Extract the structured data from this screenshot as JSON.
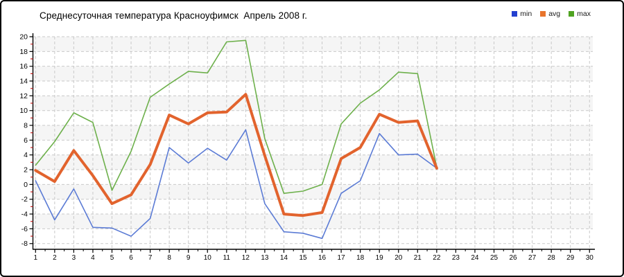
{
  "chart_data": {
    "type": "line",
    "title": "Среднесуточная температура Красноуфимск  Апрель 2008 г.",
    "x": [
      1,
      2,
      3,
      4,
      5,
      6,
      7,
      8,
      9,
      10,
      11,
      12,
      13,
      14,
      15,
      16,
      17,
      18,
      19,
      20,
      21,
      22
    ],
    "series": [
      {
        "name": "min",
        "line_color": "#5b7bd5",
        "legend_color": "#2340cf",
        "line_width": 1.6,
        "values": [
          0.5,
          -4.8,
          -0.6,
          -5.8,
          -5.9,
          -7,
          -4.6,
          5,
          2.9,
          4.9,
          3.3,
          7.4,
          -2.6,
          -6.4,
          -6.6,
          -7.3,
          -1.2,
          0.5,
          6.9,
          4,
          4.1,
          2.2
        ]
      },
      {
        "name": "avg",
        "line_color": "#e2632d",
        "legend_color": "#e8742c",
        "line_width": 4,
        "values": [
          1.9,
          0.4,
          4.6,
          1.2,
          -2.6,
          -1.4,
          2.7,
          9.4,
          8.2,
          9.7,
          9.8,
          12.2,
          3.9,
          -4,
          -4.2,
          -3.8,
          3.5,
          5,
          9.5,
          8.4,
          8.6,
          2.2
        ]
      },
      {
        "name": "max",
        "line_color": "#6db04b",
        "legend_color": "#4fa321",
        "line_width": 1.6,
        "values": [
          2.6,
          5.8,
          9.7,
          8.4,
          -0.8,
          4.5,
          11.8,
          13.6,
          15.3,
          15.1,
          19.3,
          19.5,
          6.2,
          -1.2,
          -0.9,
          0,
          8.2,
          11,
          12.8,
          15.2,
          15,
          2.3
        ]
      }
    ],
    "x_axis": {
      "min": 1,
      "max": 30,
      "tick_step": 1,
      "ticks": [
        1,
        2,
        3,
        4,
        5,
        6,
        7,
        8,
        9,
        10,
        11,
        12,
        13,
        14,
        15,
        16,
        17,
        18,
        19,
        20,
        21,
        22,
        23,
        24,
        25,
        26,
        27,
        28,
        29,
        30
      ]
    },
    "y_axis": {
      "min": -8,
      "max": 20,
      "tick_step": 2,
      "ticks": [
        20,
        18,
        16,
        14,
        12,
        10,
        8,
        6,
        4,
        2,
        0,
        -2,
        -4,
        -6,
        -8
      ],
      "minor_ticks": [
        19,
        17,
        15,
        13,
        11,
        9,
        7,
        5,
        3,
        1,
        -1,
        -3,
        -5,
        -7
      ]
    },
    "grid": {
      "show": true,
      "line_style": "dashed",
      "color": "#c9c9c9",
      "band_color": "#f5f5f5",
      "minor_tick_color": "#cc2222",
      "axis_color": "#000000"
    },
    "legend_position": "top-right",
    "ylim": [
      -8,
      20
    ],
    "xlim": [
      1,
      30
    ]
  }
}
